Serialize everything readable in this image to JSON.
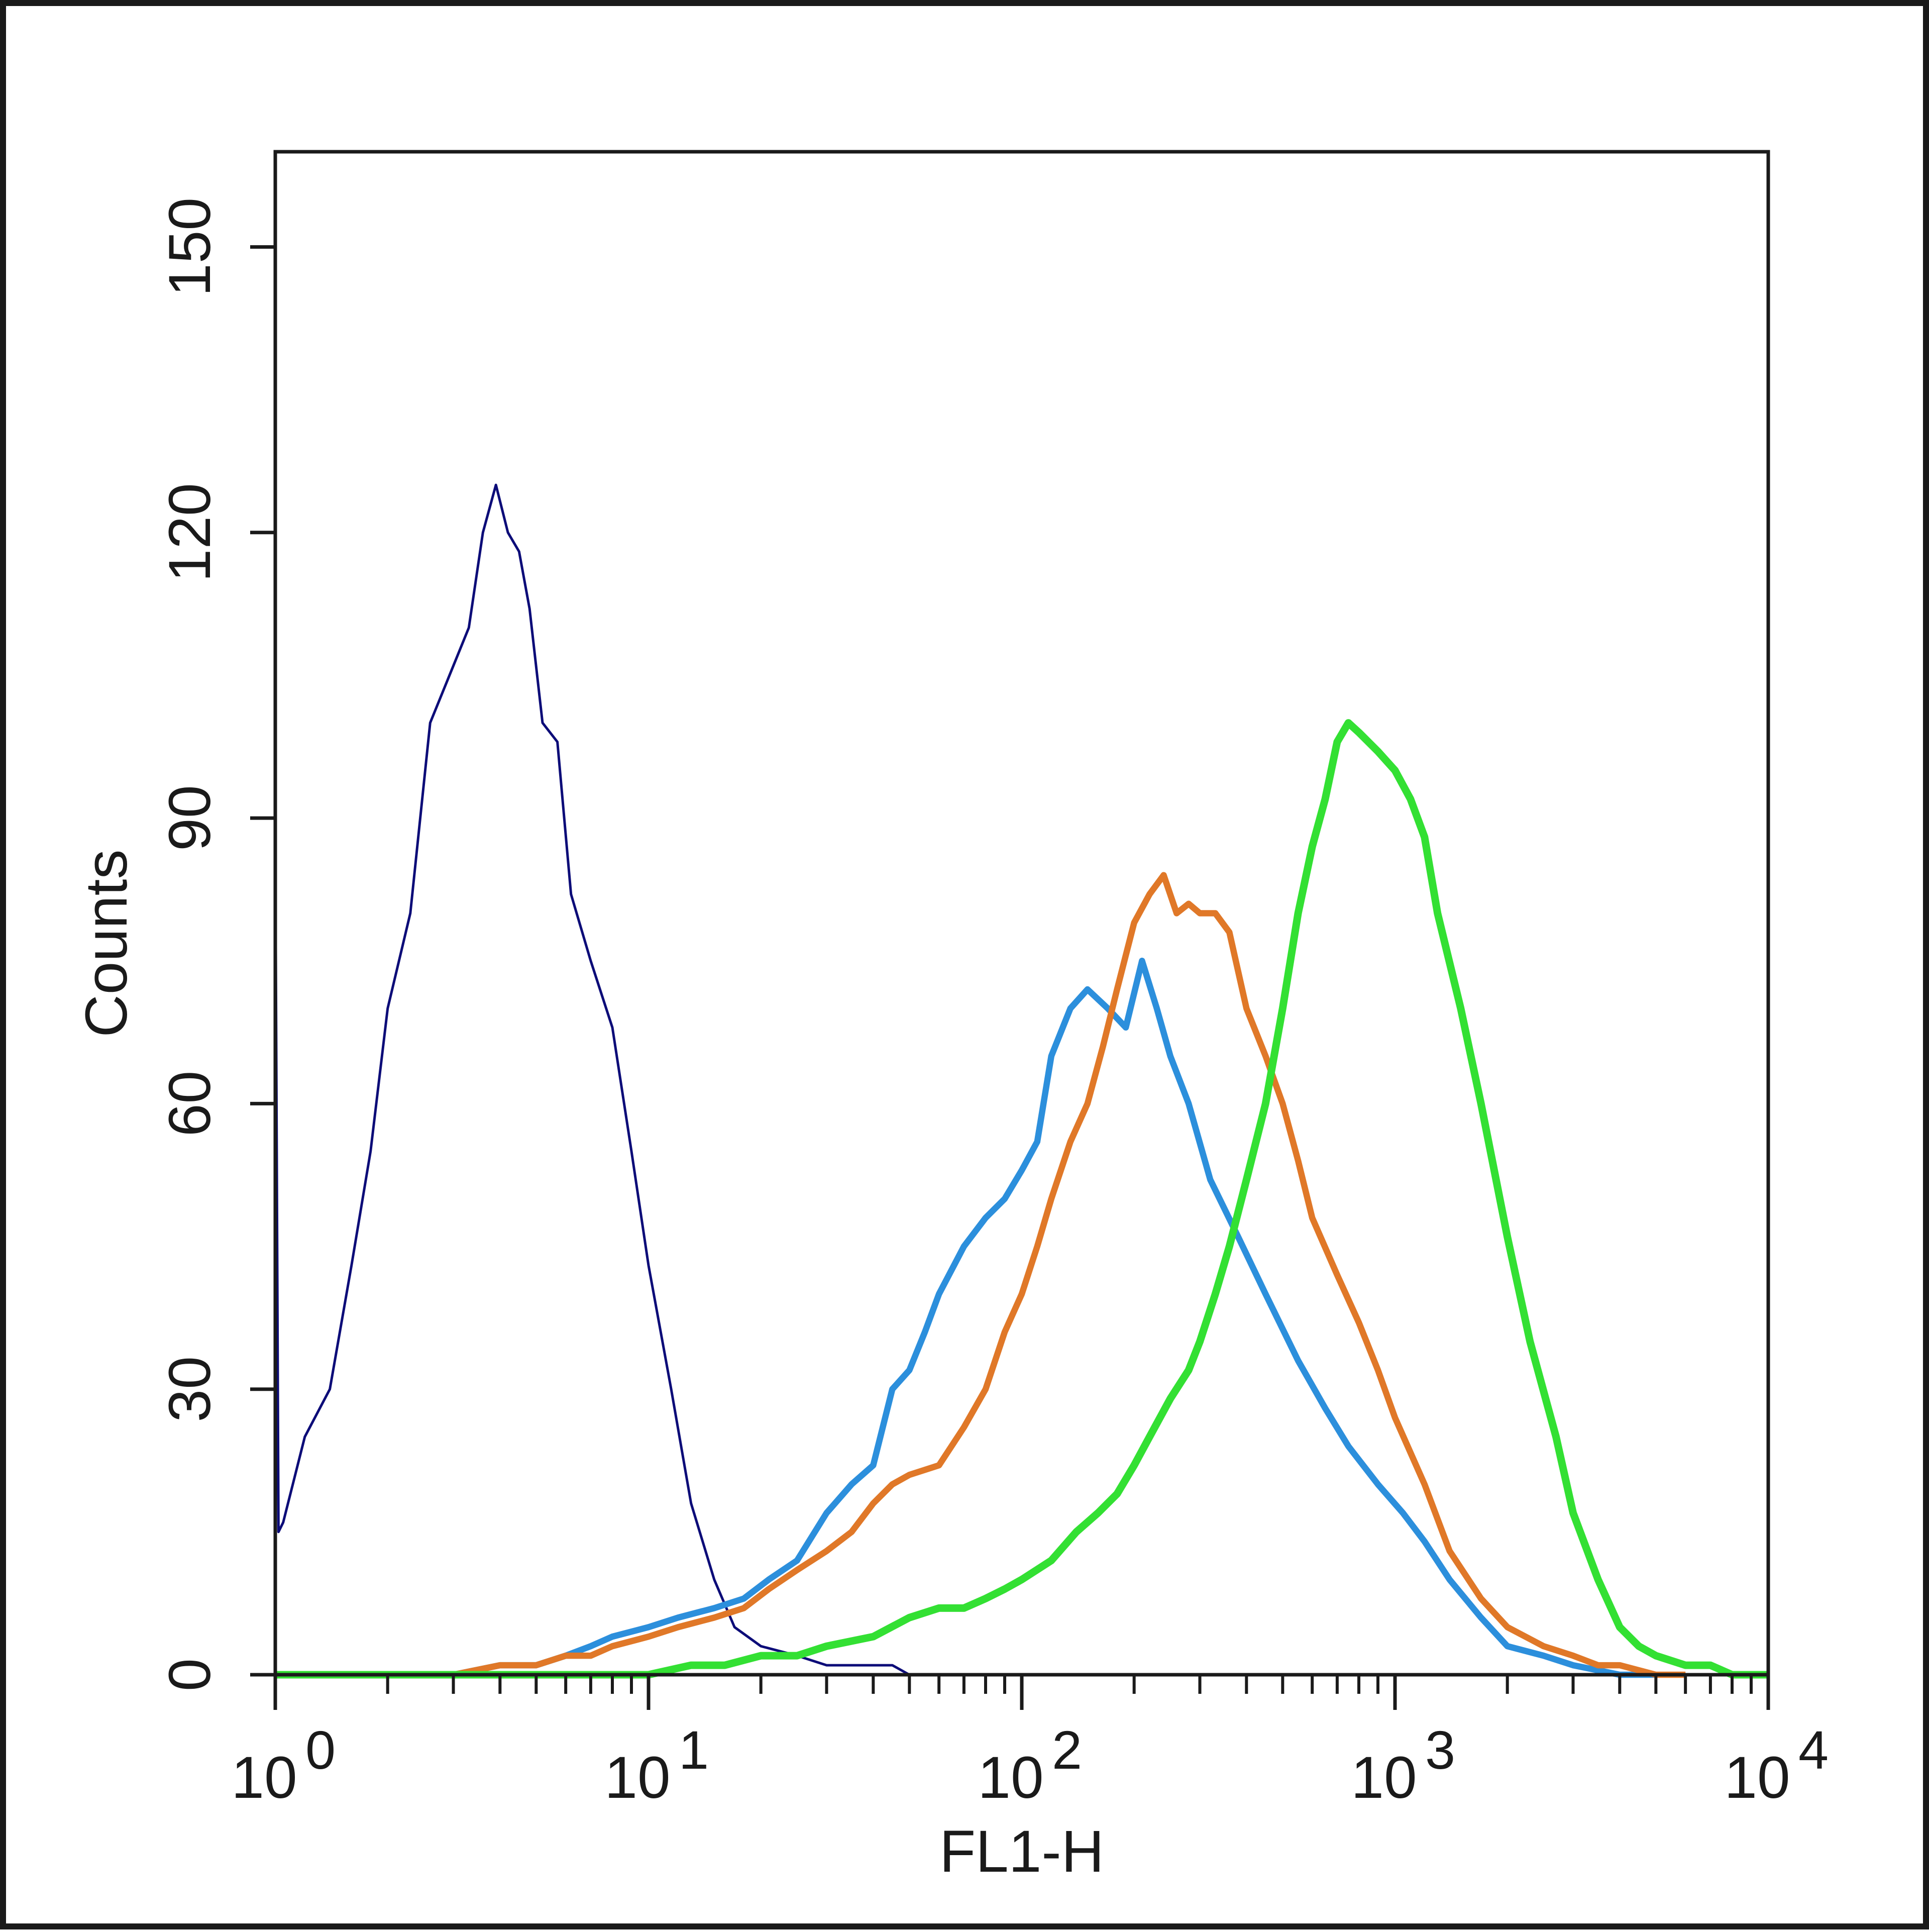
{
  "chart_data": {
    "type": "line",
    "xlabel": "FL1-H",
    "ylabel": "Counts",
    "xscale": "log",
    "xlim": [
      1,
      10000
    ],
    "ylim": [
      0,
      160
    ],
    "x_ticks": [
      {
        "base": "10",
        "exp": "0",
        "value": 1
      },
      {
        "base": "10",
        "exp": "1",
        "value": 10
      },
      {
        "base": "10",
        "exp": "2",
        "value": 100
      },
      {
        "base": "10",
        "exp": "3",
        "value": 1000
      },
      {
        "base": "10",
        "exp": "4",
        "value": 10000
      }
    ],
    "y_ticks": [
      "0",
      "30",
      "60",
      "90",
      "120",
      "150"
    ],
    "grid": false,
    "legend": "none",
    "series": [
      {
        "color": "#0c0c78",
        "width": 1,
        "x": [
          1,
          1.02,
          1.05,
          1.2,
          1.4,
          1.6,
          1.8,
          2.0,
          2.3,
          2.6,
          3.0,
          3.3,
          3.6,
          3.9,
          4.2,
          4.5,
          4.8,
          5.2,
          5.7,
          6.2,
          7.0,
          8.0,
          9.0,
          10.0,
          11.5,
          13.0,
          15.0,
          17.0,
          20.0,
          25.0,
          30.0,
          35.0,
          40.0,
          45.0,
          50.0,
          60.0
        ],
        "y": [
          88,
          15,
          16,
          25,
          30,
          43,
          55,
          70,
          80,
          100,
          106,
          110,
          120,
          125,
          120,
          118,
          112,
          100,
          98,
          82,
          75,
          68,
          55,
          43,
          30,
          18,
          10,
          5,
          3,
          2,
          1,
          1,
          1,
          1,
          0,
          0
        ]
      },
      {
        "color": "#2c8fdc",
        "width": 2.5,
        "x": [
          1,
          1.5,
          2,
          3,
          4,
          5,
          6,
          7,
          8,
          10,
          12,
          15,
          18,
          21,
          25,
          30,
          35,
          40,
          45,
          50,
          55,
          60,
          70,
          80,
          90,
          100,
          110,
          120,
          135,
          150,
          170,
          190,
          210,
          230,
          250,
          280,
          320,
          380,
          450,
          550,
          650,
          750,
          900,
          1050,
          1200,
          1400,
          1700,
          2000,
          2500,
          3000,
          4000,
          5000
        ],
        "y": [
          0,
          0,
          0,
          0,
          1,
          1,
          2,
          3,
          4,
          5,
          6,
          7,
          8,
          10,
          12,
          17,
          20,
          22,
          30,
          32,
          36,
          40,
          45,
          48,
          50,
          53,
          56,
          65,
          70,
          72,
          70,
          68,
          75,
          70,
          65,
          60,
          52,
          46,
          40,
          33,
          28,
          24,
          20,
          17,
          14,
          10,
          6,
          3,
          2,
          1,
          0,
          0
        ]
      },
      {
        "color": "#e07828",
        "width": 2.5,
        "x": [
          3,
          4,
          5,
          6,
          7,
          8,
          10,
          12,
          15,
          18,
          21,
          25,
          30,
          35,
          40,
          45,
          50,
          60,
          70,
          80,
          90,
          100,
          110,
          120,
          135,
          150,
          165,
          180,
          200,
          220,
          240,
          260,
          280,
          300,
          330,
          360,
          400,
          450,
          500,
          550,
          600,
          700,
          800,
          900,
          1000,
          1200,
          1400,
          1700,
          2000,
          2500,
          3000,
          3500,
          4000,
          5000,
          6000
        ],
        "y": [
          0,
          1,
          1,
          2,
          2,
          3,
          4,
          5,
          6,
          7,
          9,
          11,
          13,
          15,
          18,
          20,
          21,
          22,
          26,
          30,
          36,
          40,
          45,
          50,
          56,
          60,
          66,
          72,
          79,
          82,
          84,
          80,
          81,
          80,
          80,
          78,
          70,
          65,
          60,
          54,
          48,
          42,
          37,
          32,
          27,
          20,
          13,
          8,
          5,
          3,
          2,
          1,
          1,
          0,
          0
        ]
      },
      {
        "color": "#33e033",
        "width": 3,
        "x": [
          1,
          2,
          3,
          5,
          8,
          10,
          13,
          16,
          20,
          25,
          30,
          40,
          50,
          60,
          70,
          80,
          90,
          100,
          120,
          140,
          160,
          180,
          200,
          220,
          250,
          280,
          300,
          330,
          360,
          400,
          450,
          500,
          550,
          600,
          650,
          700,
          750,
          800,
          900,
          1000,
          1100,
          1200,
          1300,
          1500,
          1700,
          2000,
          2300,
          2700,
          3000,
          3500,
          4000,
          4500,
          5000,
          6000,
          7000,
          8000,
          9000,
          10000
        ],
        "y": [
          0,
          0,
          0,
          0,
          0,
          0,
          1,
          1,
          2,
          2,
          3,
          4,
          6,
          7,
          7,
          8,
          9,
          10,
          12,
          15,
          17,
          19,
          22,
          25,
          29,
          32,
          35,
          40,
          45,
          52,
          60,
          70,
          80,
          87,
          92,
          98,
          100,
          99,
          97,
          95,
          92,
          88,
          80,
          70,
          60,
          46,
          35,
          25,
          17,
          10,
          5,
          3,
          2,
          1,
          1,
          0,
          0,
          0
        ]
      }
    ]
  }
}
